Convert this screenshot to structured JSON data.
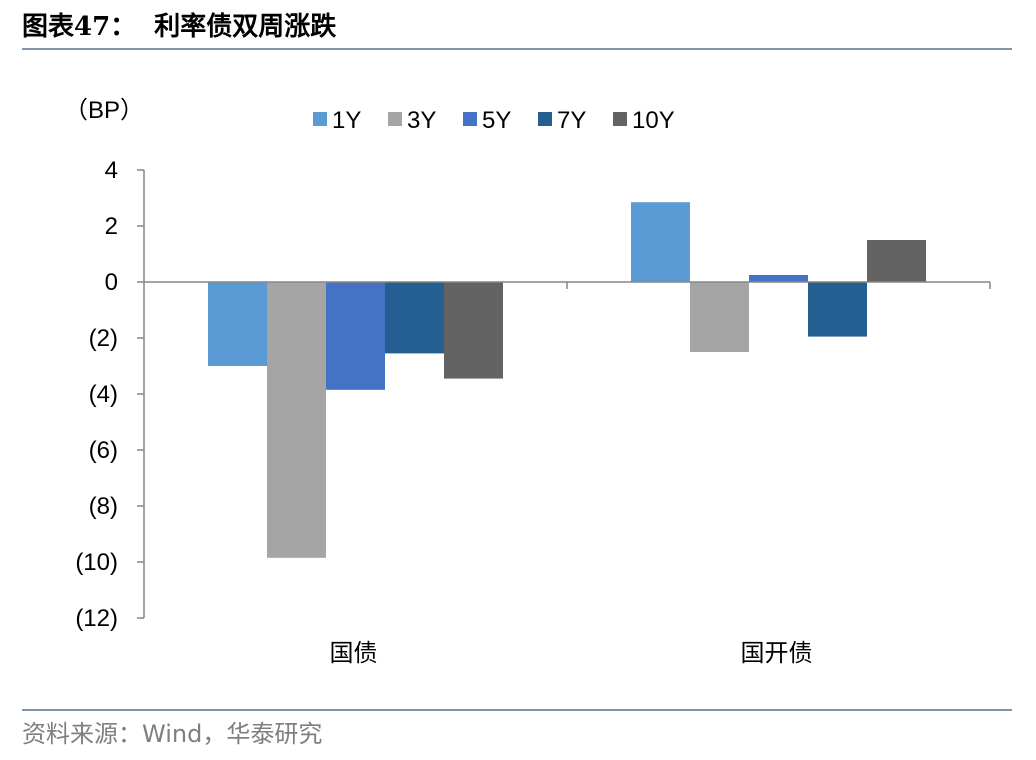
{
  "header": {
    "figure_number": "图表47：",
    "title": "利率债双周涨跌"
  },
  "footer": {
    "source": "资料来源：Wind，华泰研究"
  },
  "colors": {
    "rule": "#7f93ad",
    "axis": "#868686",
    "source_text": "#7f7f7f"
  },
  "chart_data": {
    "type": "bar",
    "unit_label": "（BP）",
    "categories": [
      "国债",
      "国开债"
    ],
    "series": [
      {
        "name": "1Y",
        "color": "#5b9bd5",
        "values": [
          -3.0,
          2.85
        ]
      },
      {
        "name": "3Y",
        "color": "#a5a5a5",
        "values": [
          -9.85,
          -2.5
        ]
      },
      {
        "name": "5Y",
        "color": "#4472c4",
        "values": [
          -3.85,
          0.25
        ]
      },
      {
        "name": "7Y",
        "color": "#255e91",
        "values": [
          -2.55,
          -1.95
        ]
      },
      {
        "name": "10Y",
        "color": "#636363",
        "values": [
          -3.45,
          1.5
        ]
      }
    ],
    "ylim": [
      -12,
      4
    ],
    "yticks": [
      4,
      2,
      0,
      -2,
      -4,
      -6,
      -8,
      -10,
      -12
    ],
    "ytick_labels": [
      "4",
      "2",
      "0",
      "(2)",
      "(4)",
      "(6)",
      "(8)",
      "(10)",
      "(12)"
    ],
    "legend_position": "top-center",
    "grid": false
  }
}
